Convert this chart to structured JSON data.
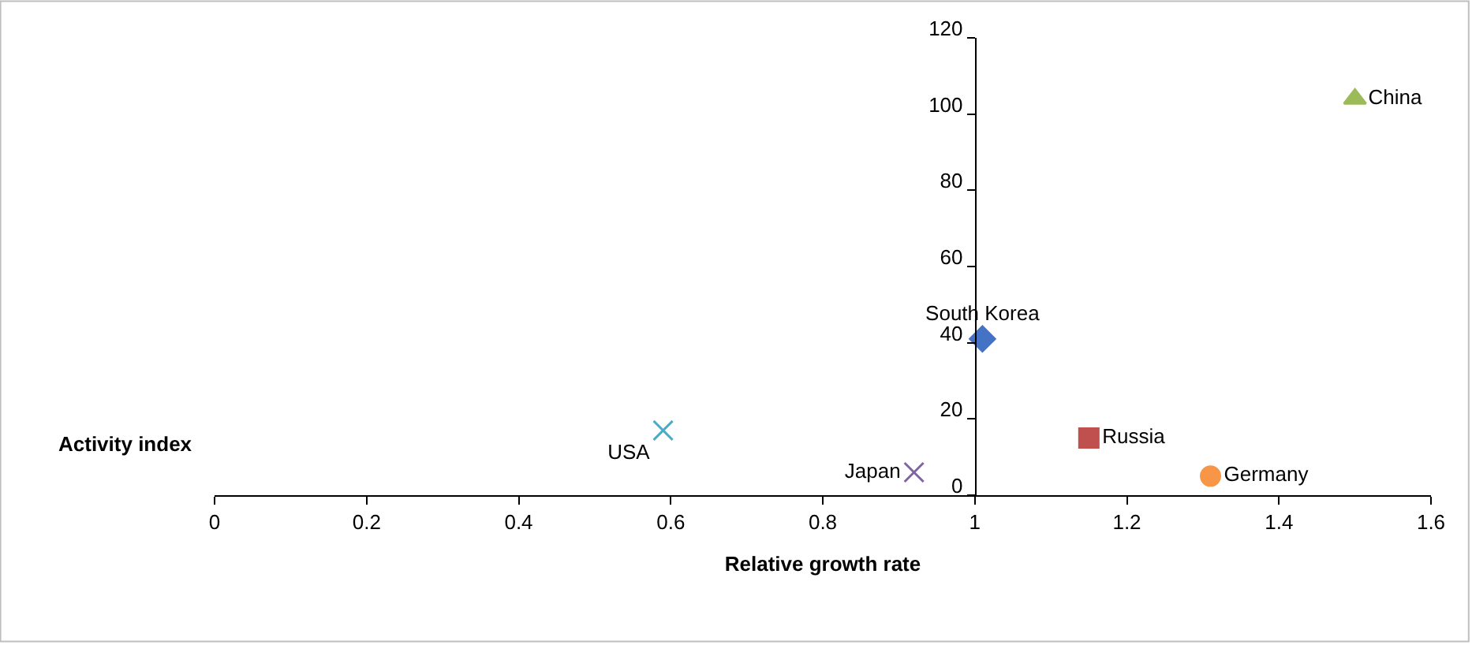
{
  "chart_data": {
    "type": "scatter",
    "xlabel": "Relative growth rate",
    "ylabel": "Activity index",
    "xlim": [
      0,
      1.6
    ],
    "xticks": [
      0,
      0.2,
      0.4,
      0.6,
      0.8,
      1,
      1.2,
      1.4,
      1.6
    ],
    "ylim": [
      0,
      120
    ],
    "yticks": [
      0,
      20,
      40,
      60,
      80,
      100,
      120
    ],
    "series": [
      {
        "name": "South Korea",
        "color": "#4472c4",
        "marker": "diamond",
        "x": [
          1.01
        ],
        "values": [
          41
        ]
      },
      {
        "name": "Russia",
        "color": "#c0504d",
        "marker": "square",
        "x": [
          1.15
        ],
        "values": [
          15
        ]
      },
      {
        "name": "China",
        "color": "#9bbb59",
        "marker": "triangle",
        "x": [
          1.5
        ],
        "values": [
          104
        ]
      },
      {
        "name": "Japan",
        "color": "#8064a2",
        "marker": "cross",
        "x": [
          0.92
        ],
        "values": [
          6
        ]
      },
      {
        "name": "USA",
        "color": "#4bacc6",
        "marker": "cross",
        "x": [
          0.59
        ],
        "values": [
          17
        ]
      },
      {
        "name": "Germany",
        "color": "#f79646",
        "marker": "circle",
        "x": [
          1.31
        ],
        "values": [
          5
        ]
      }
    ]
  }
}
